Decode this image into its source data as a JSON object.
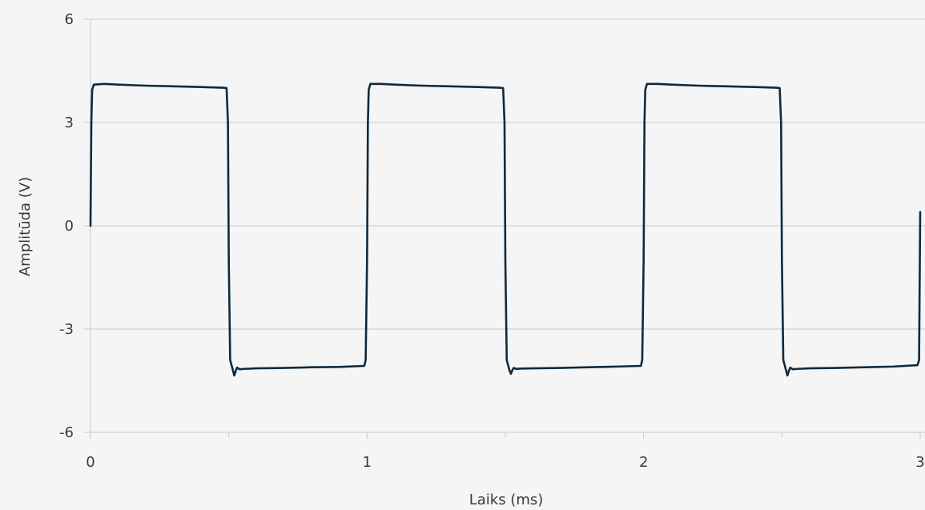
{
  "chart_data": {
    "type": "line",
    "title": "",
    "xlabel": "Laiks (ms)",
    "ylabel": "Amplitūda (V)",
    "xlim": [
      0,
      3
    ],
    "ylim": [
      -6,
      6
    ],
    "xticks": [
      0,
      1,
      2,
      3
    ],
    "xtick_labels": [
      "0",
      "1",
      "2",
      "3"
    ],
    "x_minor_ticks": [
      0.5,
      1.5,
      2.5
    ],
    "yticks": [
      6,
      3,
      0,
      -3,
      -6
    ],
    "ytick_labels": [
      "6",
      "3",
      "0",
      "-3",
      "-6"
    ],
    "grid": "horizontal",
    "legend": "none",
    "line_color": "#0f2a3d",
    "background": "#f5f5f5",
    "series": [
      {
        "x": [
          0,
          0.003,
          0.006,
          0.012,
          0.05,
          0.1,
          0.2,
          0.3,
          0.4,
          0.48,
          0.492,
          0.497,
          0.5,
          0.505,
          0.515,
          0.52,
          0.525,
          0.53,
          0.54,
          0.55,
          0.6,
          0.7,
          0.8,
          0.9,
          0.99,
          0.995,
          1.0,
          1.003,
          1.006,
          1.012,
          1.05,
          1.1,
          1.2,
          1.3,
          1.4,
          1.48,
          1.492,
          1.497,
          1.5,
          1.505,
          1.515,
          1.52,
          1.525,
          1.53,
          1.54,
          1.55,
          1.6,
          1.7,
          1.8,
          1.9,
          1.99,
          1.995,
          2.0,
          2.003,
          2.006,
          2.012,
          2.05,
          2.1,
          2.2,
          2.3,
          2.4,
          2.48,
          2.492,
          2.497,
          2.5,
          2.505,
          2.515,
          2.52,
          2.525,
          2.53,
          2.54,
          2.55,
          2.6,
          2.7,
          2.8,
          2.9,
          2.99,
          2.996,
          3.0
        ],
        "y": [
          0,
          3.0,
          3.95,
          4.1,
          4.12,
          4.1,
          4.07,
          4.05,
          4.03,
          4.01,
          4.0,
          3.0,
          -1.0,
          -3.9,
          -4.2,
          -4.35,
          -4.22,
          -4.12,
          -4.17,
          -4.16,
          -4.14,
          -4.13,
          -4.11,
          -4.1,
          -4.07,
          -3.9,
          -1.0,
          3.0,
          3.95,
          4.12,
          4.12,
          4.1,
          4.07,
          4.05,
          4.03,
          4.01,
          4.0,
          3.0,
          -1.0,
          -3.9,
          -4.2,
          -4.3,
          -4.2,
          -4.13,
          -4.16,
          -4.15,
          -4.14,
          -4.13,
          -4.11,
          -4.09,
          -4.07,
          -3.9,
          -1.0,
          3.0,
          3.95,
          4.12,
          4.12,
          4.1,
          4.07,
          4.05,
          4.03,
          4.01,
          4.0,
          3.0,
          -1.0,
          -3.9,
          -4.2,
          -4.35,
          -4.22,
          -4.12,
          -4.17,
          -4.16,
          -4.14,
          -4.13,
          -4.11,
          -4.09,
          -4.05,
          -3.9,
          0.4
        ]
      }
    ]
  }
}
